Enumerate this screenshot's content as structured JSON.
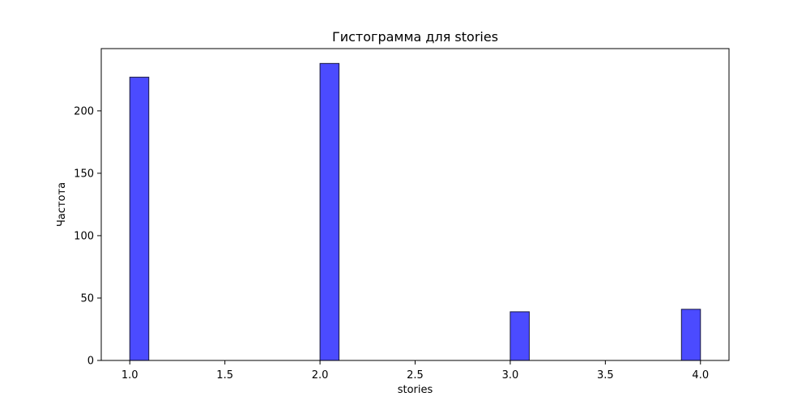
{
  "chart_data": {
    "type": "bar",
    "title": "Гистограмма для stories",
    "xlabel": "stories",
    "ylabel": "Частота",
    "bins": [
      {
        "x_start": 1.0,
        "x_end": 1.1,
        "value": 227
      },
      {
        "x_start": 2.0,
        "x_end": 2.1,
        "value": 238
      },
      {
        "x_start": 3.0,
        "x_end": 3.1,
        "value": 39
      },
      {
        "x_start": 3.9,
        "x_end": 4.0,
        "value": 41
      }
    ],
    "x_ticks": [
      "1.0",
      "1.5",
      "2.0",
      "2.5",
      "3.0",
      "3.5",
      "4.0"
    ],
    "y_ticks": [
      "0",
      "50",
      "100",
      "150",
      "200"
    ],
    "xlim": [
      0.85,
      4.15
    ],
    "ylim": [
      0,
      249.9
    ],
    "grid": false,
    "colors": {
      "bar_fill": "#4b4bff",
      "bar_edge": "#1a1a40"
    }
  }
}
